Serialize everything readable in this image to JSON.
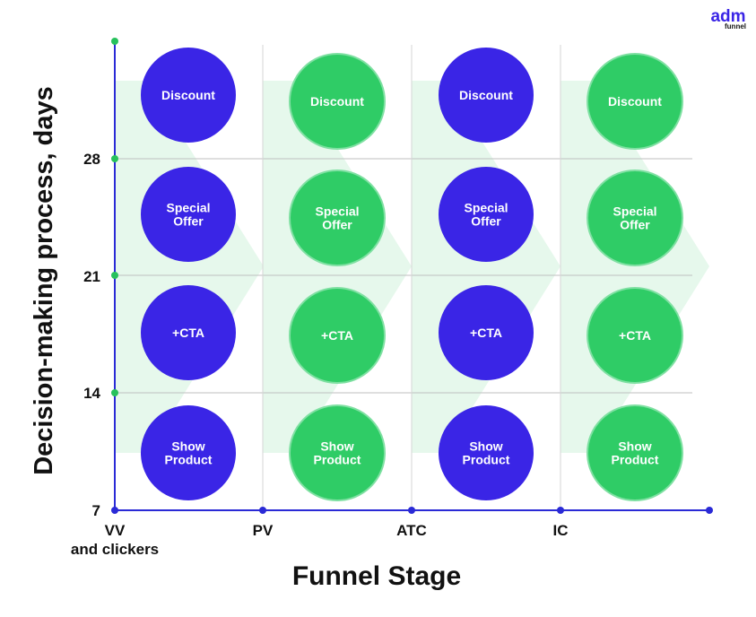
{
  "logo": {
    "mark": "adm",
    "word": "funnel"
  },
  "axes": {
    "x_title": "Funnel Stage",
    "y_title": "Decision-making process, days",
    "y_ticks": [
      "7",
      "14",
      "21",
      "28"
    ],
    "x_ticks": [
      {
        "line1": "VV",
        "line2": "and clickers"
      },
      {
        "line1": "PV",
        "line2": ""
      },
      {
        "line1": "ATC",
        "line2": ""
      },
      {
        "line1": "IC",
        "line2": ""
      }
    ]
  },
  "colors": {
    "blue": "#3a25e6",
    "green": "#2fcc66",
    "green_stroke": "#7fe0a2",
    "chevron": "#e6f8ec",
    "axis": "#2a2ad6",
    "y_dot": "#27c15c",
    "grid": "#bfbfbf"
  },
  "columns": [
    {
      "stage": "VV",
      "style": "blue",
      "tactics": [
        {
          "lines": [
            "Discount"
          ]
        },
        {
          "lines": [
            "Special",
            "Offer"
          ]
        },
        {
          "lines": [
            "+CTA"
          ]
        },
        {
          "lines": [
            "Show",
            "Product"
          ]
        }
      ]
    },
    {
      "stage": "PV",
      "style": "green",
      "tactics": [
        {
          "lines": [
            "Discount"
          ]
        },
        {
          "lines": [
            "Special",
            "Offer"
          ]
        },
        {
          "lines": [
            "+CTA"
          ]
        },
        {
          "lines": [
            "Show",
            "Product"
          ]
        }
      ]
    },
    {
      "stage": "ATC",
      "style": "blue",
      "tactics": [
        {
          "lines": [
            "Discount"
          ]
        },
        {
          "lines": [
            "Special",
            "Offer"
          ]
        },
        {
          "lines": [
            "+CTA"
          ]
        },
        {
          "lines": [
            "Show",
            "Product"
          ]
        }
      ]
    },
    {
      "stage": "IC",
      "style": "green",
      "tactics": [
        {
          "lines": [
            "Discount"
          ]
        },
        {
          "lines": [
            "Special",
            "Offer"
          ]
        },
        {
          "lines": [
            "+CTA"
          ]
        },
        {
          "lines": [
            "Show",
            "Product"
          ]
        }
      ]
    }
  ]
}
